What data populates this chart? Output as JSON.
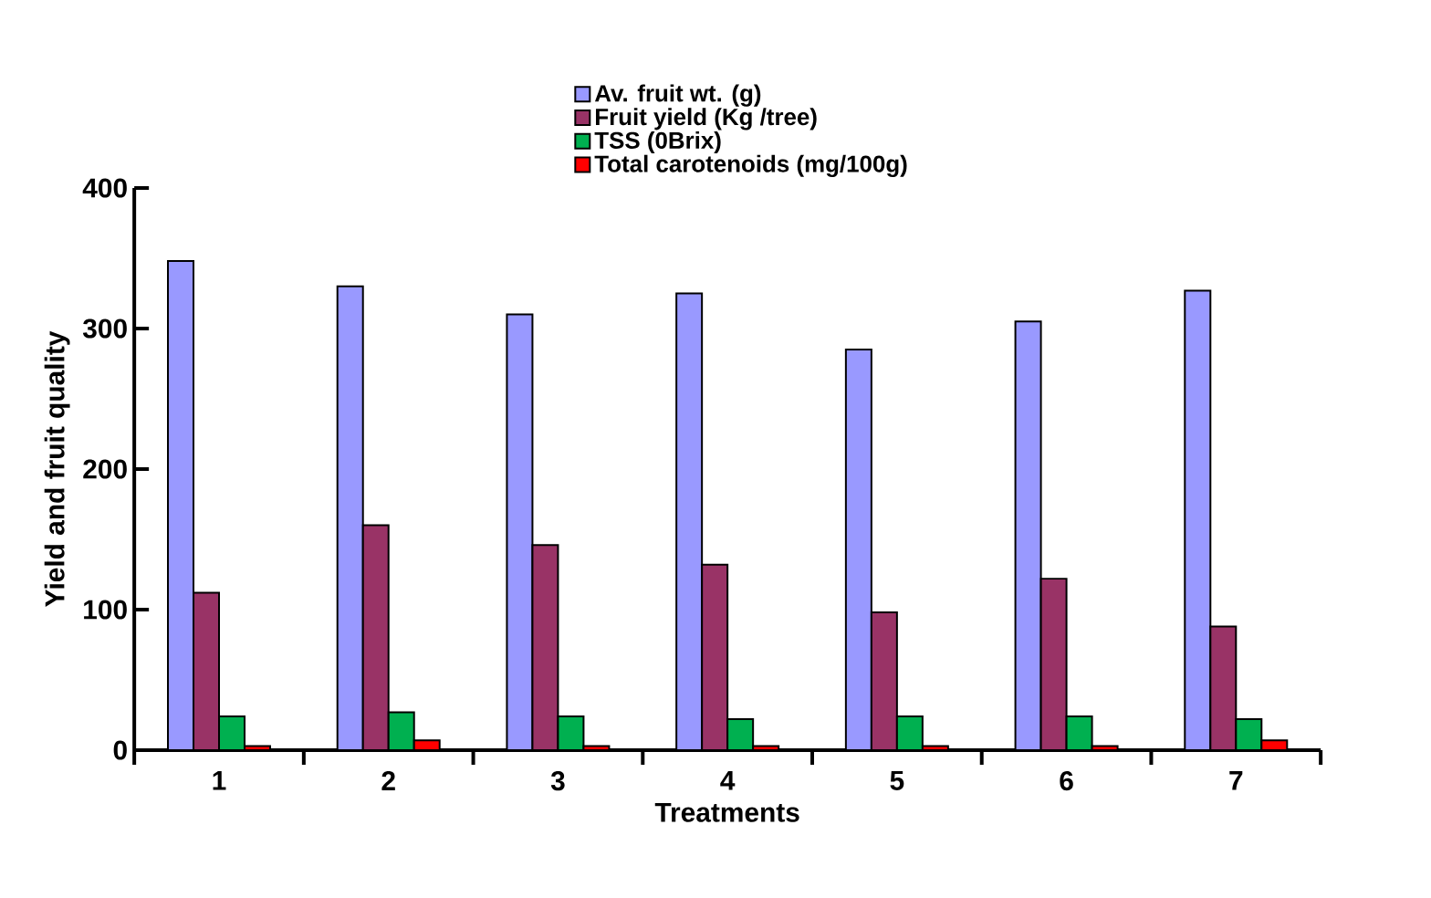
{
  "chart_data": {
    "type": "bar",
    "xlabel": "Treatments",
    "ylabel": "Yield and fruit quality",
    "categories": [
      "1",
      "2",
      "3",
      "4",
      "5",
      "6",
      "7"
    ],
    "series": [
      {
        "name": "Av. fruit wt. (g)",
        "color": "#9999ff",
        "values": [
          348,
          330,
          310,
          325,
          285,
          305,
          327
        ]
      },
      {
        "name": "Fruit yield  (Kg /tree)",
        "color": "#993366",
        "values": [
          112,
          160,
          146,
          132,
          98,
          122,
          88
        ]
      },
      {
        "name": "TSS (0Brix)",
        "color": "#00b050",
        "values": [
          24,
          27,
          24,
          22,
          24,
          24,
          22
        ]
      },
      {
        "name": "Total carotenoids  (mg/100g)",
        "color": "#ff0000",
        "values": [
          3,
          7,
          3,
          3,
          3,
          3,
          7
        ]
      }
    ],
    "ylim": [
      0,
      400
    ],
    "yticks": [
      0,
      100,
      200,
      300,
      400
    ],
    "grid": false,
    "legend": "top"
  }
}
